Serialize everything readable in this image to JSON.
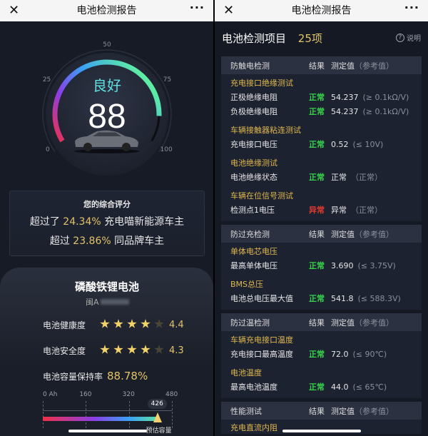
{
  "nav": {
    "title": "电池检测报告",
    "close_icon": "close-icon",
    "more_icon": "more-icon"
  },
  "gauge": {
    "status": "良好",
    "score": 88,
    "max": 100,
    "ticks": [
      "0",
      "25",
      "50",
      "75",
      "100"
    ],
    "status_color": "#5ee0e0"
  },
  "summary": {
    "title": "您的综合评分",
    "line1_pre": "超过了",
    "line1_value": "24.34%",
    "line1_post": "充电喵新能源车主",
    "line2_pre": "超过",
    "line2_value": "23.86%",
    "line2_post": "同品牌车主"
  },
  "battery": {
    "type": "磷酸铁锂电池",
    "plate": "闽A",
    "health_label": "电池健康度",
    "health_score": "4.4",
    "health_stars": 4,
    "safety_label": "电池安全度",
    "safety_score": "4.3",
    "safety_stars": 4,
    "capacity_label": "电池容量保持率",
    "capacity_value": "88.78%",
    "axis": [
      "0 Ah",
      "160",
      "320",
      "480"
    ],
    "capacity_ah": 426,
    "capacity_max": 480,
    "capacity_marker": "426",
    "capacity_caption": "预估容量"
  },
  "checks": {
    "title": "电池检测项目",
    "count": "25项",
    "help": "说明",
    "result_label": "结果",
    "value_label": "测定值",
    "ref_label": "（参考值）",
    "sections": [
      {
        "name": "防触电检测",
        "groups": [
          {
            "name": "充电接口绝缘测试",
            "items": [
              {
                "name": "正极绝缘电阻",
                "result": "正常",
                "ok": true,
                "value": "54.237",
                "ref": "(≥ 0.1kΩ/V)"
              },
              {
                "name": "负极绝缘电阻",
                "result": "正常",
                "ok": true,
                "value": "54.237",
                "ref": "(≥ 0.1kΩ/V)"
              }
            ]
          },
          {
            "name": "车辆接触器粘连测试",
            "items": [
              {
                "name": "充电接口电压",
                "result": "正常",
                "ok": true,
                "value": "0.52",
                "ref": "(≤ 10V)"
              }
            ]
          },
          {
            "name": "电池绝缘测试",
            "items": [
              {
                "name": "电池绝缘状态",
                "result": "正常",
                "ok": true,
                "value": "正常",
                "ref": "（正常）"
              }
            ]
          },
          {
            "name": "车辆在位信号测试",
            "items": [
              {
                "name": "检测点1电压",
                "result": "异常",
                "ok": false,
                "value": "异常",
                "ref": "（正常）"
              }
            ]
          }
        ]
      },
      {
        "name": "防过充检测",
        "groups": [
          {
            "name": "单体电芯电压",
            "items": [
              {
                "name": "最高单体电压",
                "result": "正常",
                "ok": true,
                "value": "3.690",
                "ref": "(≤ 3.75V)"
              }
            ]
          },
          {
            "name": "BMS总压",
            "items": [
              {
                "name": "电池总电压最大值",
                "result": "正常",
                "ok": true,
                "value": "541.8",
                "ref": "(≤ 588.3V)"
              }
            ]
          }
        ]
      },
      {
        "name": "防过温检测",
        "groups": [
          {
            "name": "车辆充电接口温度",
            "items": [
              {
                "name": "充电接口最高温度",
                "result": "正常",
                "ok": true,
                "value": "72.0",
                "ref": "(≤ 90℃)"
              }
            ]
          },
          {
            "name": "电池温度",
            "items": [
              {
                "name": "最高电池温度",
                "result": "正常",
                "ok": true,
                "value": "44.0",
                "ref": "(≤ 65℃)"
              }
            ]
          }
        ]
      },
      {
        "name": "性能测试",
        "groups": [
          {
            "name": "充电直流内阻",
            "items": []
          }
        ]
      }
    ]
  }
}
